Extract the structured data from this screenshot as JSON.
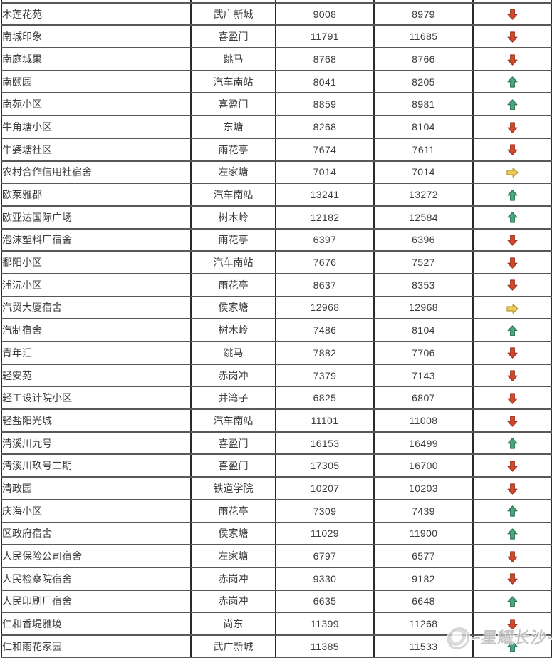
{
  "watermark": {
    "text": "星耀长沙"
  },
  "trend_colors": {
    "up": "#4CA57E",
    "up_border": "#27754F",
    "down": "#D0492C",
    "down_border": "#A03420",
    "flat": "#EBC95A",
    "flat_border": "#BE9A35"
  },
  "table": {
    "rows": [
      {
        "name": "木莲花苑",
        "district": "武广新城",
        "price_a": "9008",
        "price_b": "8979",
        "trend": "down"
      },
      {
        "name": "南城印象",
        "district": "喜盈门",
        "price_a": "11791",
        "price_b": "11685",
        "trend": "down"
      },
      {
        "name": "南庭城果",
        "district": "跳马",
        "price_a": "8768",
        "price_b": "8766",
        "trend": "down"
      },
      {
        "name": "南颐园",
        "district": "汽车南站",
        "price_a": "8041",
        "price_b": "8205",
        "trend": "up"
      },
      {
        "name": "南苑小区",
        "district": "喜盈门",
        "price_a": "8859",
        "price_b": "8981",
        "trend": "up"
      },
      {
        "name": "牛角塘小区",
        "district": "东塘",
        "price_a": "8268",
        "price_b": "8104",
        "trend": "down"
      },
      {
        "name": "牛婆塘社区",
        "district": "雨花亭",
        "price_a": "7674",
        "price_b": "7611",
        "trend": "down"
      },
      {
        "name": "农村合作信用社宿舍",
        "district": "左家塘",
        "price_a": "7014",
        "price_b": "7014",
        "trend": "flat"
      },
      {
        "name": "欧莱雅郡",
        "district": "汽车南站",
        "price_a": "13241",
        "price_b": "13272",
        "trend": "up"
      },
      {
        "name": "欧亚达国际广场",
        "district": "树木岭",
        "price_a": "12182",
        "price_b": "12584",
        "trend": "up"
      },
      {
        "name": "泡沫塑料厂宿舍",
        "district": "雨花亭",
        "price_a": "6397",
        "price_b": "6396",
        "trend": "down"
      },
      {
        "name": "鄱阳小区",
        "district": "汽车南站",
        "price_a": "7676",
        "price_b": "7527",
        "trend": "down"
      },
      {
        "name": "浦沅小区",
        "district": "雨花亭",
        "price_a": "8637",
        "price_b": "8353",
        "trend": "down"
      },
      {
        "name": "汽贸大厦宿舍",
        "district": "侯家塘",
        "price_a": "12968",
        "price_b": "12968",
        "trend": "flat"
      },
      {
        "name": "汽制宿舍",
        "district": "树木岭",
        "price_a": "7486",
        "price_b": "8104",
        "trend": "up"
      },
      {
        "name": "青年汇",
        "district": "跳马",
        "price_a": "7882",
        "price_b": "7706",
        "trend": "down"
      },
      {
        "name": "轻安苑",
        "district": "赤岗冲",
        "price_a": "7379",
        "price_b": "7143",
        "trend": "down"
      },
      {
        "name": "轻工设计院小区",
        "district": "井湾子",
        "price_a": "6825",
        "price_b": "6807",
        "trend": "down"
      },
      {
        "name": "轻盐阳光城",
        "district": "汽车南站",
        "price_a": "11101",
        "price_b": "11008",
        "trend": "down"
      },
      {
        "name": "清溪川九号",
        "district": "喜盈门",
        "price_a": "16153",
        "price_b": "16499",
        "trend": "up"
      },
      {
        "name": "清溪川玖号二期",
        "district": "喜盈门",
        "price_a": "17305",
        "price_b": "16700",
        "trend": "down"
      },
      {
        "name": "清政园",
        "district": "铁道学院",
        "price_a": "10207",
        "price_b": "10203",
        "trend": "down"
      },
      {
        "name": "庆海小区",
        "district": "雨花亭",
        "price_a": "7309",
        "price_b": "7439",
        "trend": "up"
      },
      {
        "name": "区政府宿舍",
        "district": "侯家塘",
        "price_a": "11029",
        "price_b": "11900",
        "trend": "up"
      },
      {
        "name": "人民保险公司宿舍",
        "district": "左家塘",
        "price_a": "6797",
        "price_b": "6577",
        "trend": "down"
      },
      {
        "name": "人民检察院宿舍",
        "district": "赤岗冲",
        "price_a": "9330",
        "price_b": "9182",
        "trend": "down"
      },
      {
        "name": "人民印刷厂宿舍",
        "district": "赤岗冲",
        "price_a": "6635",
        "price_b": "6648",
        "trend": "up"
      },
      {
        "name": "仁和香堤雅境",
        "district": "尚东",
        "price_a": "11399",
        "price_b": "11268",
        "trend": "down"
      },
      {
        "name": "仁和雨花家园",
        "district": "武广新城",
        "price_a": "11385",
        "price_b": "11533",
        "trend": "up"
      }
    ]
  }
}
